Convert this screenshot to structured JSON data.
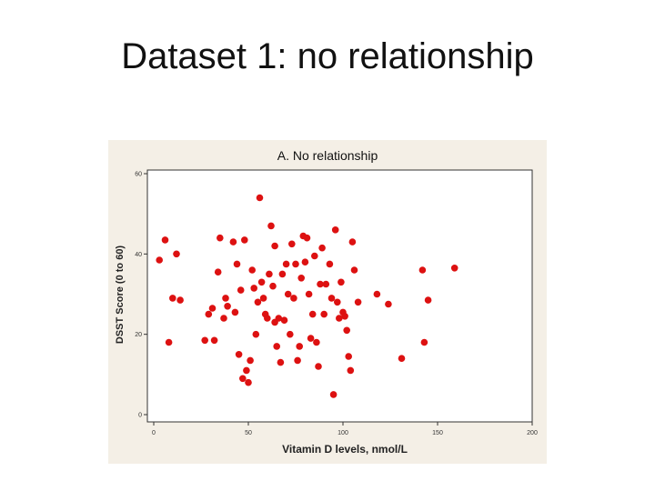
{
  "slide": {
    "title": "Dataset 1: no relationship"
  },
  "colors": {
    "point": "#dd1111",
    "panel_bg": "#ffffff",
    "figure_bg": "#f4efe6",
    "axis": "#333333"
  },
  "chart_data": {
    "type": "scatter",
    "title": "A. No relationship",
    "xlabel": "Vitamin D levels, nmol/L",
    "ylabel": "DSST Score (0 to 60)",
    "xlim": [
      0,
      200
    ],
    "ylim": [
      0,
      60
    ],
    "xticks": [
      "0",
      "50",
      "100",
      "150",
      "200"
    ],
    "yticks": [
      "0",
      "20",
      "40",
      "60"
    ],
    "grid": false,
    "points": [
      [
        3,
        38.5
      ],
      [
        6,
        43.5
      ],
      [
        8,
        18
      ],
      [
        10,
        29
      ],
      [
        12,
        40
      ],
      [
        14,
        28.5
      ],
      [
        27,
        18.5
      ],
      [
        29,
        25
      ],
      [
        31,
        26.5
      ],
      [
        32,
        18.5
      ],
      [
        34,
        35.5
      ],
      [
        35,
        44
      ],
      [
        37,
        24
      ],
      [
        38,
        29
      ],
      [
        39,
        27
      ],
      [
        42,
        43
      ],
      [
        43,
        25.5
      ],
      [
        44,
        37.5
      ],
      [
        45,
        15
      ],
      [
        46,
        31
      ],
      [
        47,
        9
      ],
      [
        48,
        43.5
      ],
      [
        49,
        11
      ],
      [
        50,
        8
      ],
      [
        51,
        13.5
      ],
      [
        52,
        36
      ],
      [
        53,
        31.5
      ],
      [
        54,
        20
      ],
      [
        55,
        28
      ],
      [
        56,
        54
      ],
      [
        57,
        33
      ],
      [
        58,
        29
      ],
      [
        59,
        25
      ],
      [
        60,
        24
      ],
      [
        61,
        35
      ],
      [
        62,
        47
      ],
      [
        63,
        32
      ],
      [
        64,
        23
      ],
      [
        64,
        42
      ],
      [
        65,
        17
      ],
      [
        66,
        24
      ],
      [
        67,
        13
      ],
      [
        68,
        35
      ],
      [
        69,
        23.5
      ],
      [
        70,
        37.5
      ],
      [
        71,
        30
      ],
      [
        72,
        20
      ],
      [
        73,
        42.5
      ],
      [
        74,
        29
      ],
      [
        75,
        37.5
      ],
      [
        76,
        13.5
      ],
      [
        77,
        17
      ],
      [
        78,
        34
      ],
      [
        79,
        44.5
      ],
      [
        80,
        38
      ],
      [
        81,
        44
      ],
      [
        82,
        30
      ],
      [
        83,
        19
      ],
      [
        84,
        25
      ],
      [
        85,
        39.5
      ],
      [
        86,
        18
      ],
      [
        87,
        12
      ],
      [
        88,
        32.5
      ],
      [
        89,
        41.5
      ],
      [
        90,
        25
      ],
      [
        91,
        32.5
      ],
      [
        93,
        37.5
      ],
      [
        94,
        29
      ],
      [
        95,
        5
      ],
      [
        96,
        46
      ],
      [
        97,
        28
      ],
      [
        98,
        24
      ],
      [
        99,
        33
      ],
      [
        100,
        25.5
      ],
      [
        101,
        24.5
      ],
      [
        102,
        21
      ],
      [
        103,
        14.5
      ],
      [
        104,
        11
      ],
      [
        105,
        43
      ],
      [
        106,
        36
      ],
      [
        108,
        28
      ],
      [
        118,
        30
      ],
      [
        124,
        27.5
      ],
      [
        131,
        14
      ],
      [
        142,
        36
      ],
      [
        143,
        18
      ],
      [
        145,
        28.5
      ],
      [
        159,
        36.5
      ]
    ]
  }
}
